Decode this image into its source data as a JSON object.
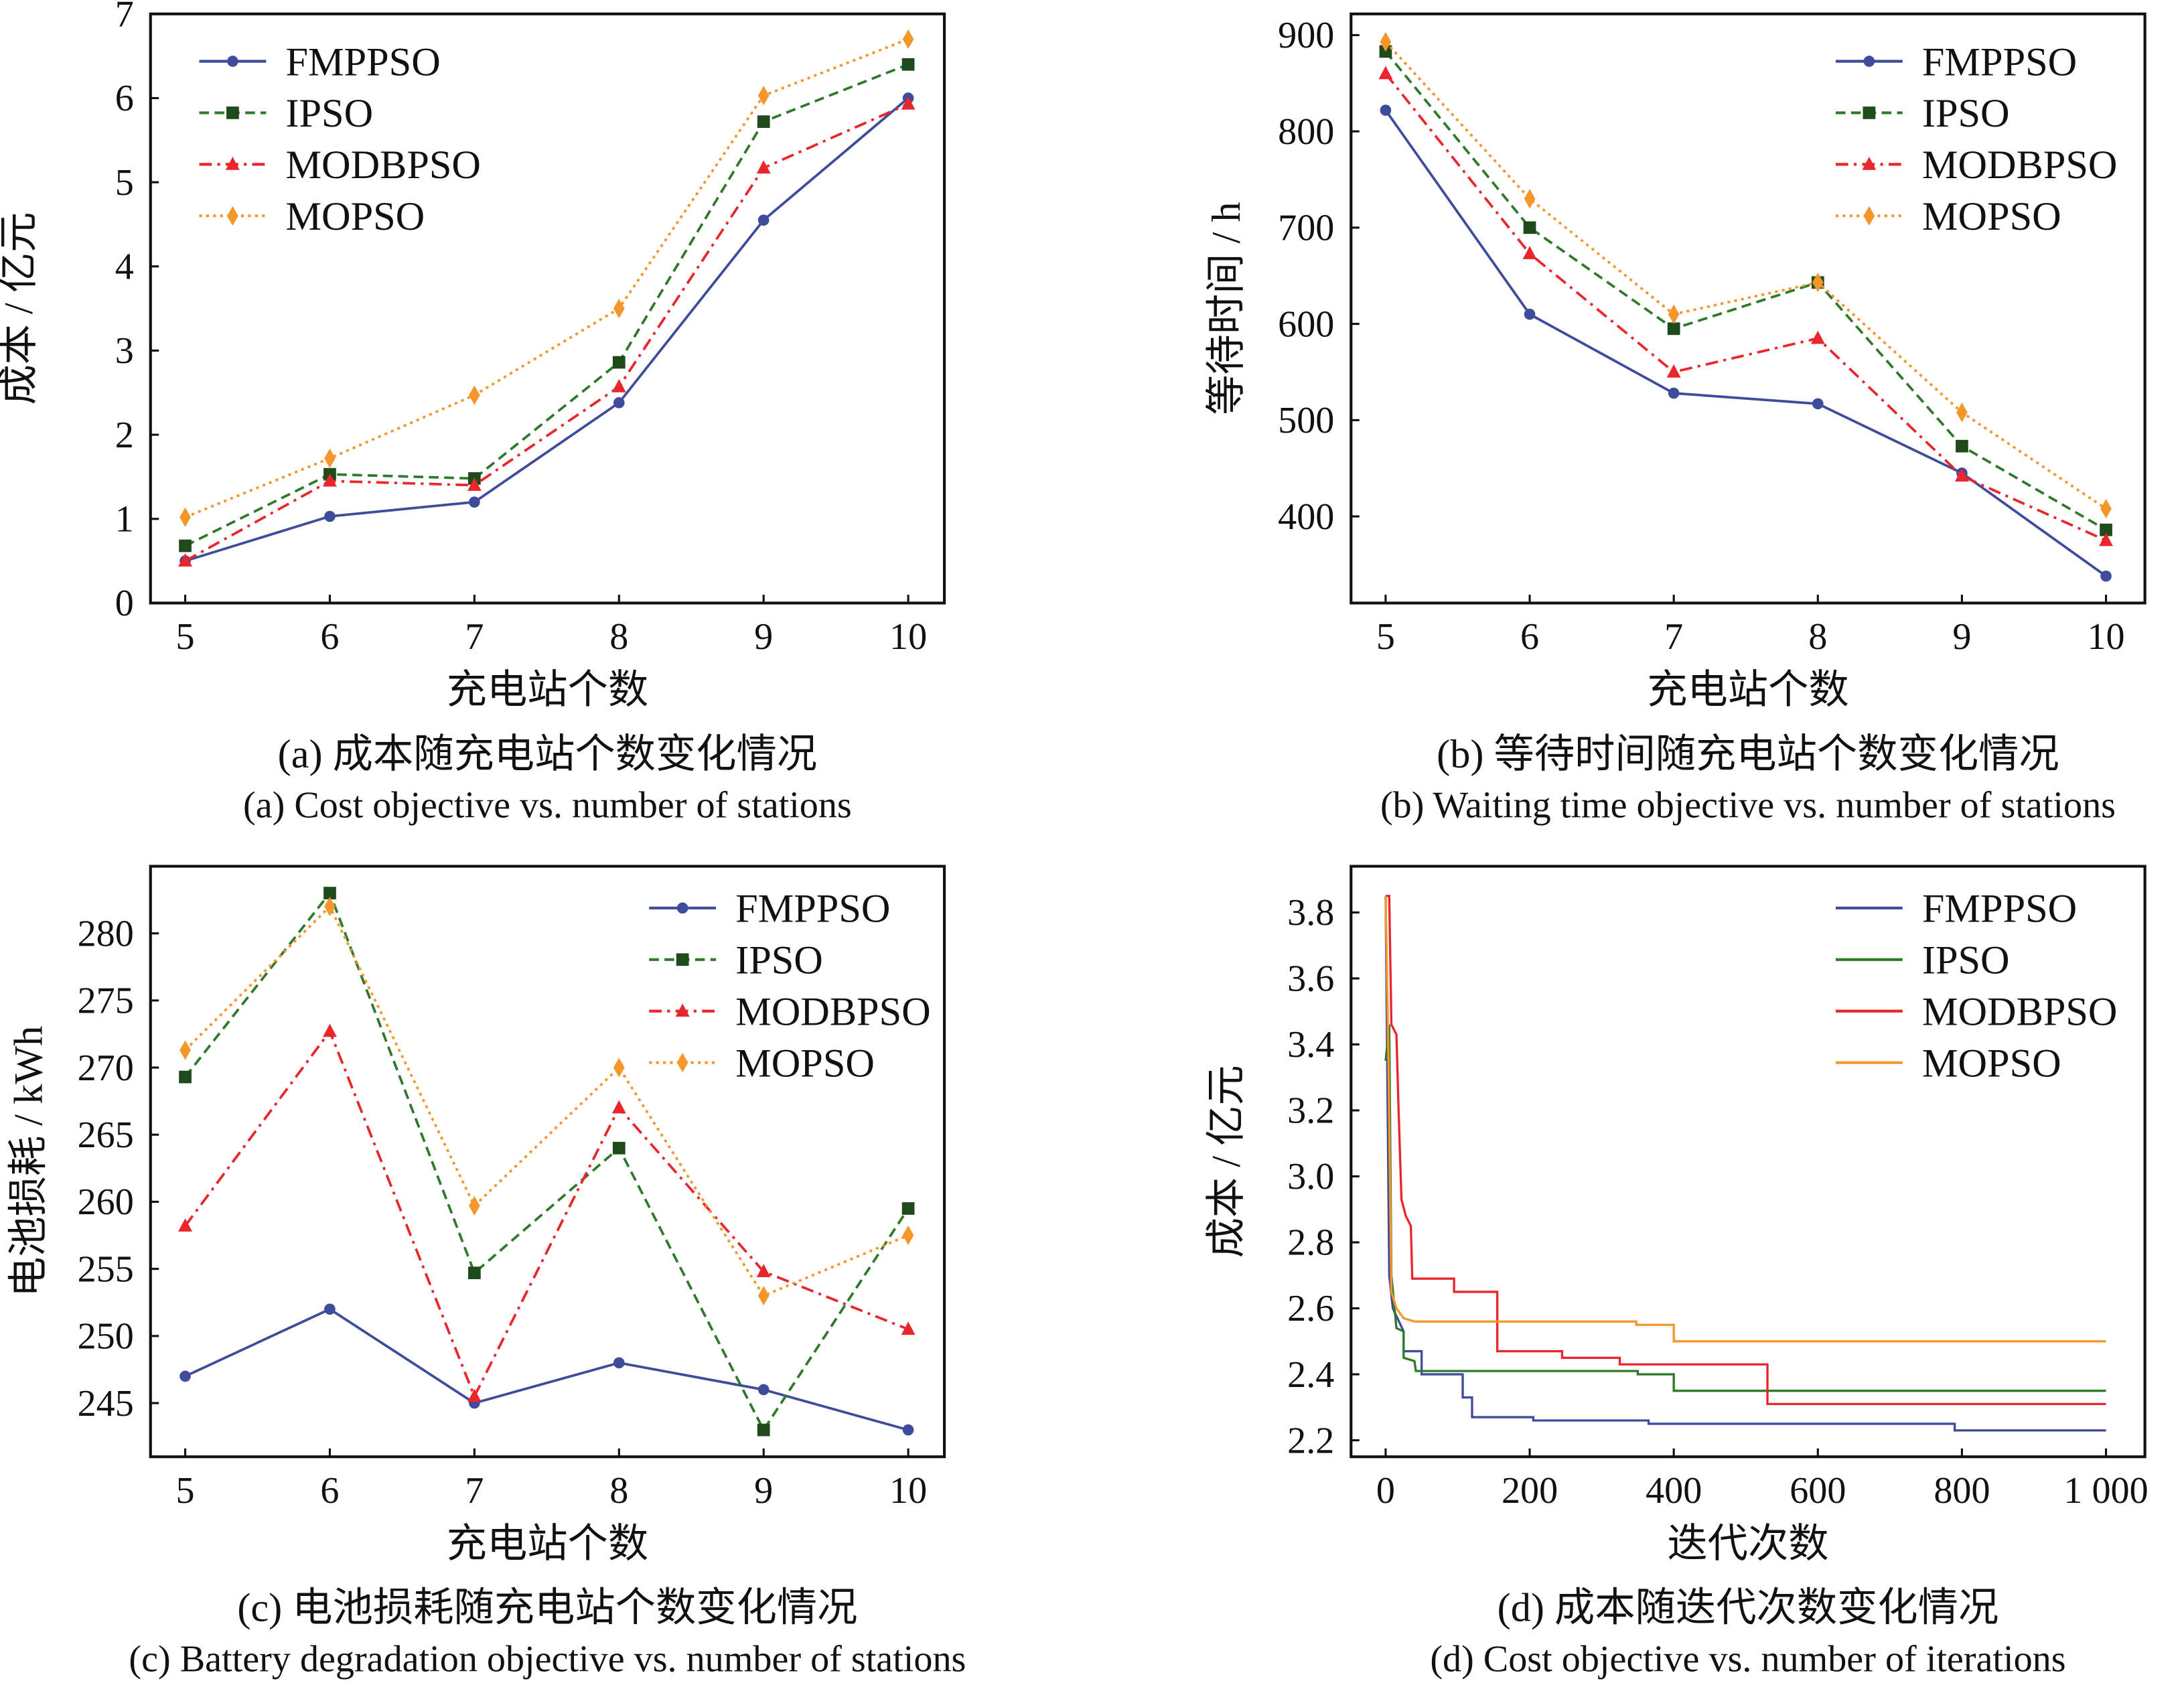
{
  "colors": {
    "FMPPSO": "#3f4c9c",
    "IPSO": "#2f7a2a",
    "IPSO_marker": "#1f4a1c",
    "MODBPSO": "#e8262b",
    "MOPSO": "#f5962a"
  },
  "chart_data": [
    {
      "id": "a",
      "type": "line",
      "xlabel": "充电站个数",
      "ylabel": "成本 / 亿元",
      "caption_cn": "(a) 成本随充电站个数变化情况",
      "caption_en": "(a) Cost objective vs. number of stations",
      "xlim": [
        4.76,
        10.25
      ],
      "ylim": [
        0,
        7
      ],
      "xticks": [
        5,
        6,
        7,
        8,
        9,
        10
      ],
      "xtick_labels": [
        "5",
        "6",
        "7",
        "8",
        "9",
        "10"
      ],
      "yticks": [
        0,
        1,
        2,
        3,
        4,
        5,
        6,
        7
      ],
      "ytick_labels": [
        "0",
        "1",
        "2",
        "3",
        "4",
        "5",
        "6",
        "7"
      ],
      "legend": "top-left",
      "grid": false,
      "markers": true,
      "x": [
        5,
        6,
        7,
        8,
        9,
        10
      ],
      "series": [
        {
          "name": "FMPPSO",
          "style": "solid",
          "marker": "circle",
          "values": [
            0.5,
            1.03,
            1.2,
            2.38,
            4.55,
            6.0
          ]
        },
        {
          "name": "IPSO",
          "style": "dashed",
          "marker": "square",
          "values": [
            0.68,
            1.53,
            1.48,
            2.86,
            5.72,
            6.4
          ]
        },
        {
          "name": "MODBPSO",
          "style": "dashdot",
          "marker": "triangle",
          "values": [
            0.5,
            1.45,
            1.4,
            2.57,
            5.17,
            5.93
          ]
        },
        {
          "name": "MOPSO",
          "style": "dotted",
          "marker": "diamond",
          "values": [
            1.02,
            1.72,
            2.47,
            3.5,
            6.03,
            6.7
          ]
        }
      ]
    },
    {
      "id": "b",
      "type": "line",
      "xlabel": "充电站个数",
      "ylabel": "等待时间 / h",
      "caption_cn": "(b) 等待时间随充电站个数变化情况",
      "caption_en": "(b) Waiting time objective vs. number of stations",
      "xlim": [
        4.76,
        10.27
      ],
      "ylim": [
        310,
        922
      ],
      "xticks": [
        5,
        6,
        7,
        8,
        9,
        10
      ],
      "xtick_labels": [
        "5",
        "6",
        "7",
        "8",
        "9",
        "10"
      ],
      "yticks": [
        400,
        500,
        600,
        700,
        800,
        900
      ],
      "ytick_labels": [
        "400",
        "500",
        "600",
        "700",
        "800",
        "900"
      ],
      "legend": "top-right",
      "grid": false,
      "markers": true,
      "x": [
        5,
        6,
        7,
        8,
        9,
        10
      ],
      "series": [
        {
          "name": "FMPPSO",
          "style": "solid",
          "marker": "circle",
          "values": [
            822,
            610,
            528,
            517,
            445,
            338
          ]
        },
        {
          "name": "IPSO",
          "style": "dashed",
          "marker": "square",
          "values": [
            883,
            700,
            595,
            643,
            473,
            386
          ]
        },
        {
          "name": "MODBPSO",
          "style": "dashdot",
          "marker": "triangle",
          "values": [
            860,
            673,
            550,
            585,
            442,
            375
          ]
        },
        {
          "name": "MOPSO",
          "style": "dotted",
          "marker": "diamond",
          "values": [
            893,
            730,
            610,
            643,
            508,
            408
          ]
        }
      ]
    },
    {
      "id": "c",
      "type": "line",
      "xlabel": "充电站个数",
      "ylabel": "电池损耗 / kWh",
      "caption_cn": "(c) 电池损耗随充电站个数变化情况",
      "caption_en": "(c) Battery degradation objective vs. number of stations",
      "xlim": [
        4.76,
        10.25
      ],
      "ylim": [
        241,
        285
      ],
      "xticks": [
        5,
        6,
        7,
        8,
        9,
        10
      ],
      "xtick_labels": [
        "5",
        "6",
        "7",
        "8",
        "9",
        "10"
      ],
      "yticks": [
        245,
        250,
        255,
        260,
        265,
        270,
        275,
        280
      ],
      "ytick_labels": [
        "245",
        "250",
        "255",
        "260",
        "265",
        "270",
        "275",
        "280"
      ],
      "legend": "top-right",
      "grid": false,
      "markers": true,
      "x": [
        5,
        6,
        7,
        8,
        9,
        10
      ],
      "series": [
        {
          "name": "FMPPSO",
          "style": "solid",
          "marker": "circle",
          "values": [
            247,
            252,
            245,
            248,
            246,
            243
          ]
        },
        {
          "name": "IPSO",
          "style": "dashed",
          "marker": "square",
          "values": [
            269.3,
            283,
            254.7,
            264,
            243,
            259.5
          ]
        },
        {
          "name": "MODBPSO",
          "style": "dashdot",
          "marker": "triangle",
          "values": [
            258.2,
            272.7,
            245.5,
            267,
            254.8,
            250.5
          ]
        },
        {
          "name": "MOPSO",
          "style": "dotted",
          "marker": "diamond",
          "values": [
            271.3,
            282,
            259.7,
            270,
            253,
            257.5
          ]
        }
      ]
    },
    {
      "id": "d",
      "type": "line",
      "xlabel": "迭代次数",
      "ylabel": "成本 / 亿元",
      "caption_cn": "(d) 成本随迭代次数变化情况",
      "caption_en": "(d) Cost objective vs. number of iterations",
      "xlim": [
        -48,
        1054
      ],
      "ylim": [
        2.15,
        3.94
      ],
      "xticks": [
        0,
        200,
        400,
        600,
        800,
        1000
      ],
      "xtick_labels": [
        "0",
        "200",
        "400",
        "600",
        "800",
        "1 000"
      ],
      "yticks": [
        2.2,
        2.4,
        2.6,
        2.8,
        3.0,
        3.2,
        3.4,
        3.6,
        3.8
      ],
      "ytick_labels": [
        "2.2",
        "2.4",
        "2.6",
        "2.8",
        "3.0",
        "3.2",
        "3.4",
        "3.6",
        "3.8"
      ],
      "legend": "top-right",
      "grid": false,
      "markers": false,
      "series": [
        {
          "name": "FMPPSO",
          "style": "solid",
          "points": [
            [
              0,
              3.85
            ],
            [
              5,
              2.7
            ],
            [
              10,
              2.6
            ],
            [
              25,
              2.53
            ],
            [
              25,
              2.47
            ],
            [
              50,
              2.47
            ],
            [
              50,
              2.4
            ],
            [
              107,
              2.4
            ],
            [
              107,
              2.33
            ],
            [
              120,
              2.33
            ],
            [
              120,
              2.27
            ],
            [
              205,
              2.27
            ],
            [
              205,
              2.26
            ],
            [
              365,
              2.26
            ],
            [
              365,
              2.25
            ],
            [
              790,
              2.25
            ],
            [
              790,
              2.23
            ],
            [
              1000,
              2.23
            ]
          ]
        },
        {
          "name": "IPSO",
          "style": "solid",
          "points": [
            [
              0,
              3.35
            ],
            [
              5,
              3.46
            ],
            [
              8,
              2.7
            ],
            [
              15,
              2.54
            ],
            [
              25,
              2.53
            ],
            [
              25,
              2.45
            ],
            [
              40,
              2.44
            ],
            [
              42,
              2.41
            ],
            [
              350,
              2.41
            ],
            [
              350,
              2.4
            ],
            [
              400,
              2.4
            ],
            [
              400,
              2.35
            ],
            [
              1000,
              2.35
            ]
          ]
        },
        {
          "name": "MODBPSO",
          "style": "solid",
          "points": [
            [
              0,
              3.85
            ],
            [
              5,
              3.85
            ],
            [
              8,
              3.46
            ],
            [
              15,
              3.43
            ],
            [
              18,
              3.2
            ],
            [
              22,
              2.93
            ],
            [
              28,
              2.88
            ],
            [
              35,
              2.85
            ],
            [
              37,
              2.69
            ],
            [
              95,
              2.69
            ],
            [
              95,
              2.65
            ],
            [
              155,
              2.65
            ],
            [
              155,
              2.47
            ],
            [
              245,
              2.47
            ],
            [
              245,
              2.45
            ],
            [
              325,
              2.45
            ],
            [
              325,
              2.43
            ],
            [
              530,
              2.43
            ],
            [
              530,
              2.31
            ],
            [
              1000,
              2.31
            ]
          ]
        },
        {
          "name": "MOPSO",
          "style": "solid",
          "points": [
            [
              0,
              3.85
            ],
            [
              4,
              3.35
            ],
            [
              8,
              2.65
            ],
            [
              15,
              2.6
            ],
            [
              25,
              2.57
            ],
            [
              40,
              2.56
            ],
            [
              348,
              2.56
            ],
            [
              348,
              2.55
            ],
            [
              400,
              2.55
            ],
            [
              400,
              2.5
            ],
            [
              1000,
              2.5
            ]
          ]
        }
      ]
    }
  ]
}
